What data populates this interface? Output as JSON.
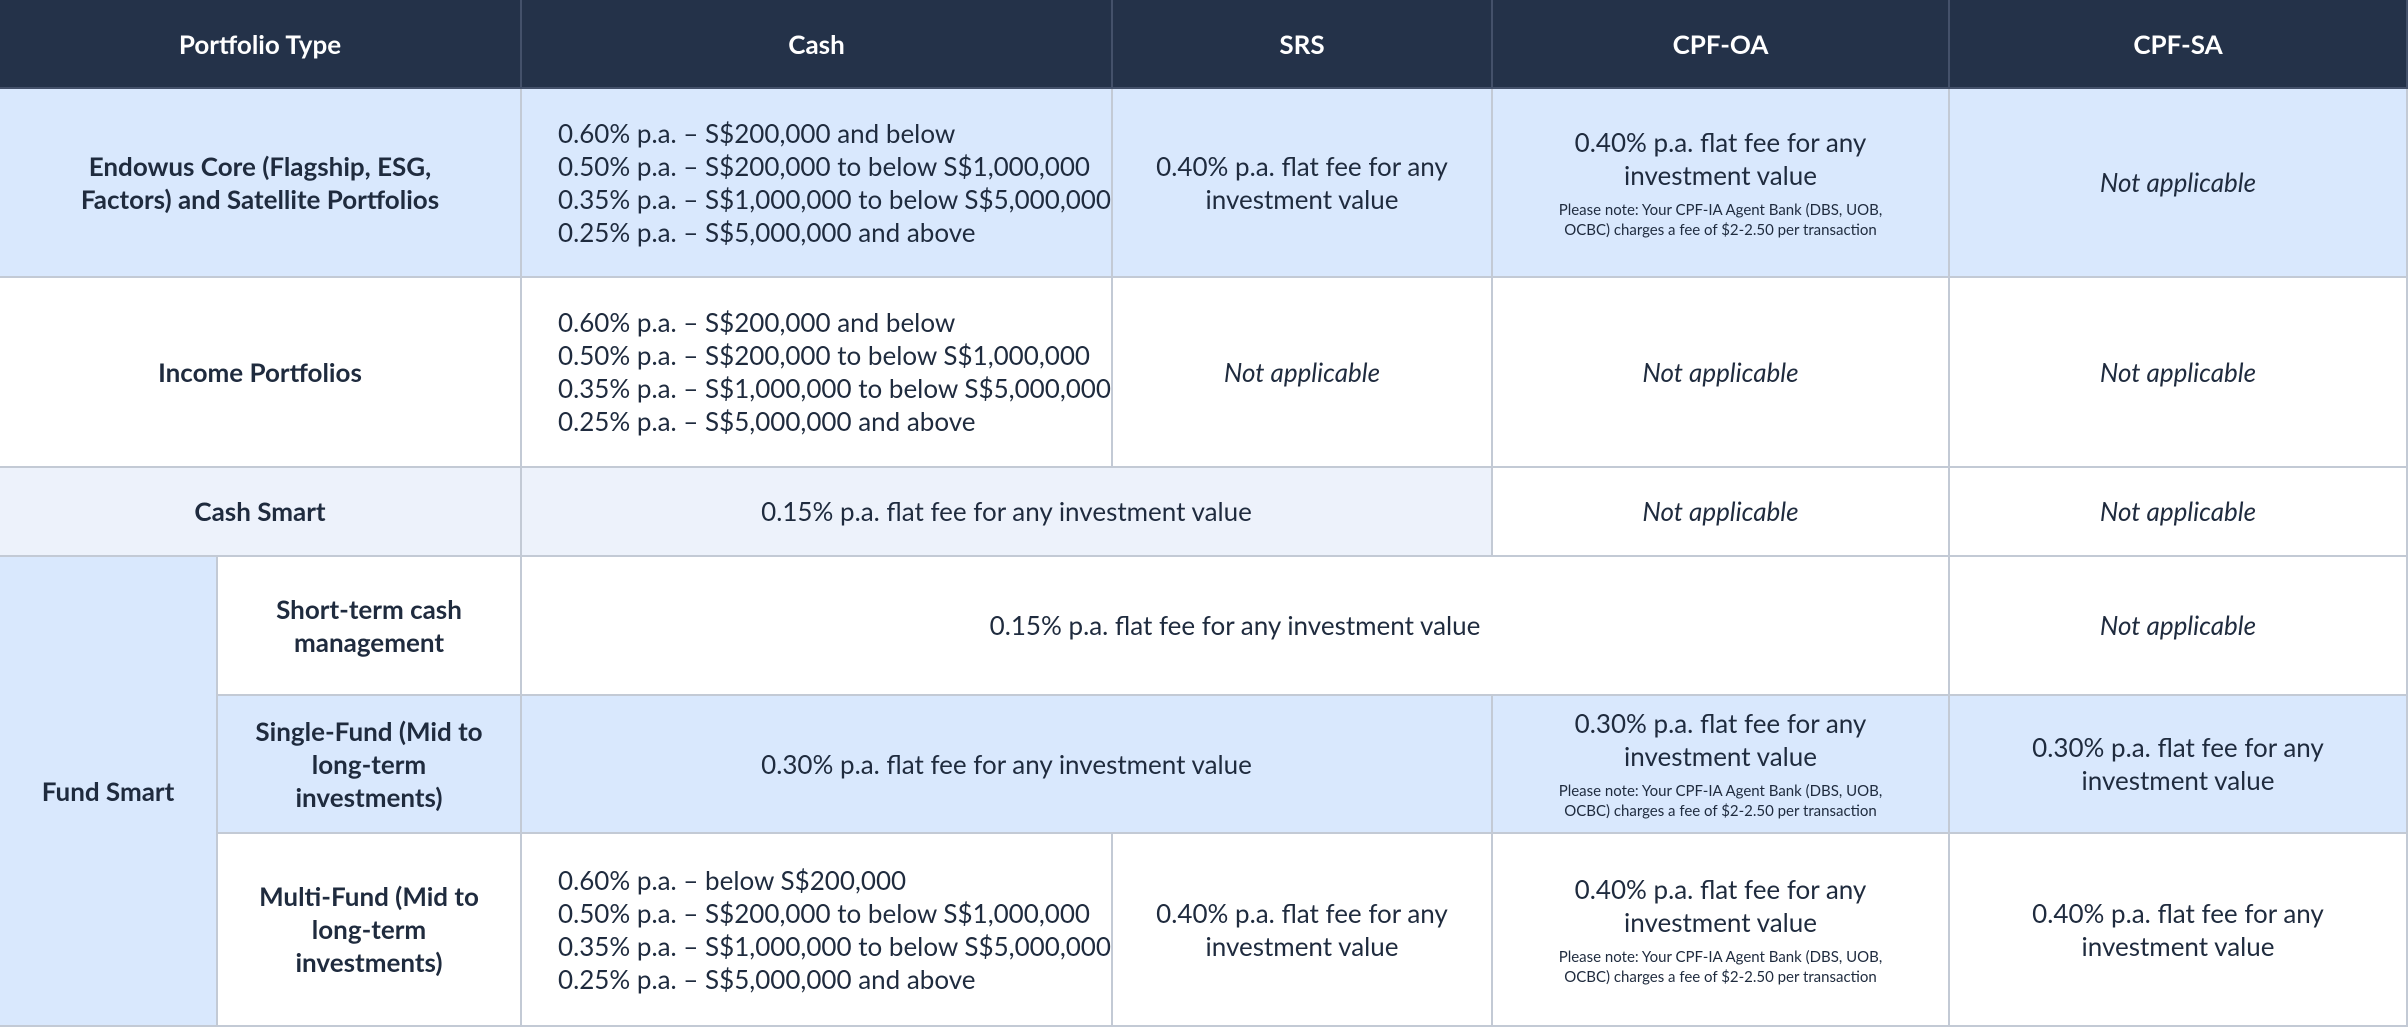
{
  "table": {
    "header": [
      "Portfolio Type",
      "Cash",
      "SRS",
      "CPF-OA",
      "CPF-SA"
    ],
    "rows": [
      {
        "label": "Endowus Core (Flagship, ESG, Factors) and Satellite Portfolios",
        "cells": [
          {
            "lines": [
              "0.60% p.a. – S$200,000 and below",
              "0.50% p.a. – S$200,000 to below S$1,000,000",
              "0.35% p.a. – S$1,000,000 to below S$5,000,000",
              "0.25% p.a. – S$5,000,000 and above"
            ]
          },
          {
            "text": "0.40% p.a. flat fee for any investment value"
          },
          {
            "text": "0.40% p.a. flat fee for any investment value",
            "note": "Please note: Your CPF-IA Agent Bank (DBS, UOB, OCBC) charges a fee of $2-2.50 per transaction"
          },
          {
            "text": "Not applicable"
          }
        ]
      },
      {
        "label": "Income Portfolios",
        "cells": [
          {
            "lines": [
              "0.60% p.a. – S$200,000 and below",
              "0.50% p.a. – S$200,000 to below S$1,000,000",
              "0.35% p.a. – S$1,000,000 to below S$5,000,000",
              "0.25% p.a. – S$5,000,000 and above"
            ]
          },
          {
            "text": "Not applicable"
          },
          {
            "text": "Not applicable"
          },
          {
            "text": "Not applicable"
          }
        ]
      },
      {
        "label": "Cash Smart",
        "cells": [
          {
            "text": "0.15% p.a. flat fee for any investment value"
          },
          {
            "text": "Not applicable"
          },
          {
            "text": "Not applicable"
          }
        ]
      },
      {
        "group": "Fund Smart",
        "label": "Short-term cash management",
        "cells": [
          {
            "text": "0.15% p.a. flat fee for any investment value"
          },
          {
            "text": "Not applicable"
          }
        ]
      },
      {
        "label": "Single-Fund (Mid to long-term investments)",
        "cells": [
          {
            "text": "0.30% p.a. flat fee for any investment value"
          },
          {
            "text": "0.30% p.a. flat fee for any investment value",
            "note": "Please note: Your CPF-IA Agent Bank (DBS, UOB, OCBC) charges a fee of $2-2.50 per transaction"
          },
          {
            "text": "0.30% p.a. flat fee for any investment value"
          }
        ]
      },
      {
        "label": "Multi-Fund (Mid to long-term investments)",
        "cells": [
          {
            "lines": [
              "0.60% p.a. – below S$200,000",
              "0.50% p.a. – S$200,000 to below S$1,000,000",
              "0.35% p.a. – S$1,000,000 to below S$5,000,000",
              "0.25% p.a. – S$5,000,000 and above"
            ]
          },
          {
            "text": "0.40% p.a. flat fee for any investment value"
          },
          {
            "text": "0.40% p.a. flat fee for any investment value",
            "note": "Please note: Your CPF-IA Agent Bank (DBS, UOB, OCBC) charges a fee of $2-2.50 per transaction"
          },
          {
            "text": "0.40% p.a. flat fee for any investment value"
          }
        ]
      }
    ]
  }
}
